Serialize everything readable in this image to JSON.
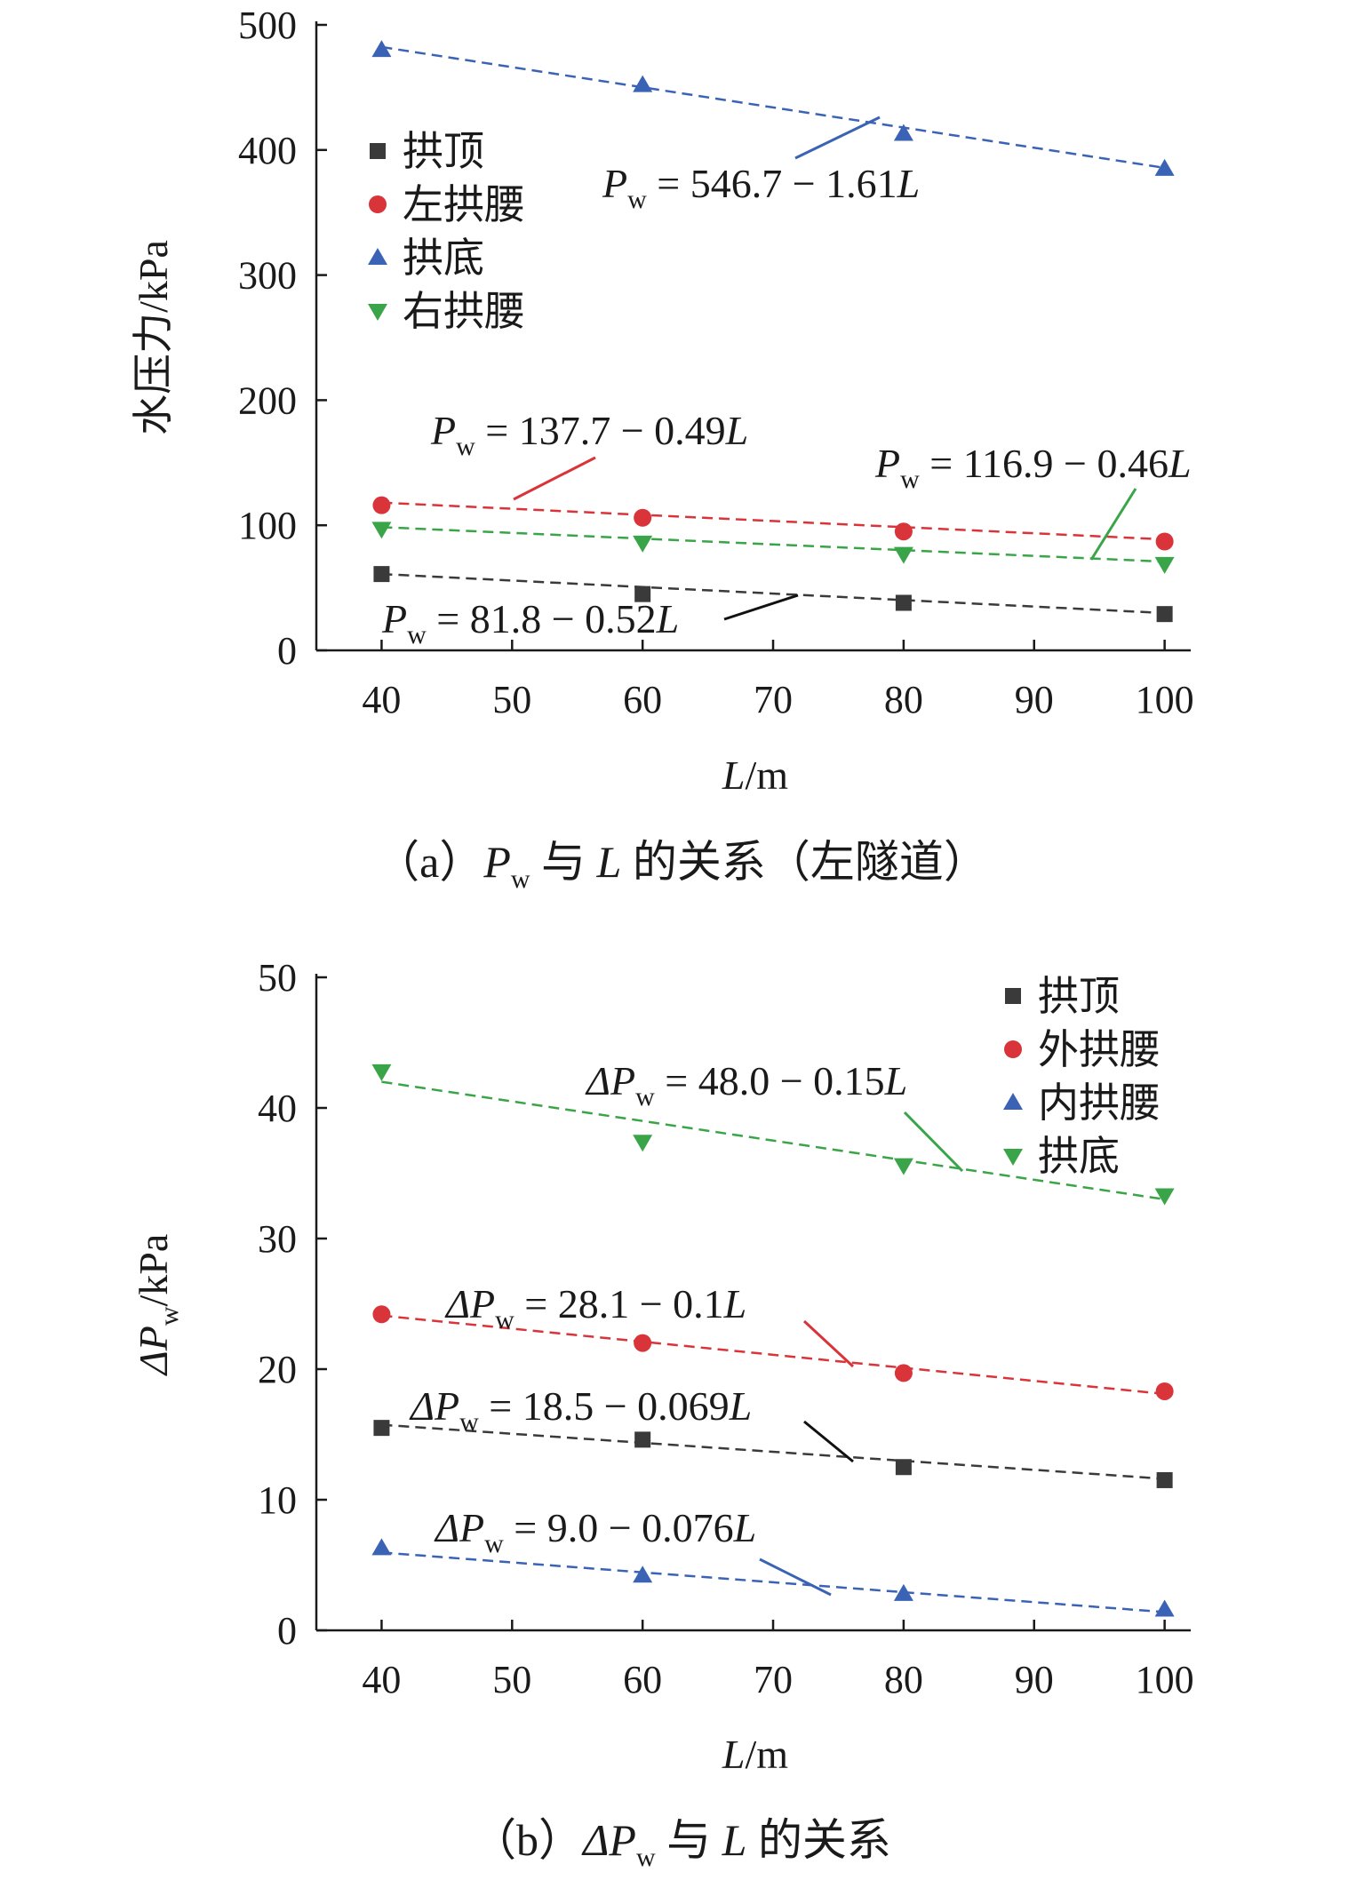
{
  "chart_data": [
    {
      "type": "scatter",
      "caption": "（a）Pw 与 L 的关系（左隧道）",
      "caption_parts": {
        "open": "（a）",
        "sym": "P",
        "sub": "w",
        "mid": " 与 ",
        "var": "L",
        "tail": " 的关系（左隧道）"
      },
      "xlabel": "L/m",
      "xlabel_parts": {
        "var": "L",
        "unit": "/m"
      },
      "ylabel": "水压力/kPa",
      "xlim": [
        35,
        102
      ],
      "ylim": [
        0,
        500
      ],
      "xticks": [
        "40",
        "50",
        "60",
        "70",
        "80",
        "90",
        "100"
      ],
      "yticks": [
        "0",
        "100",
        "200",
        "300",
        "400",
        "500"
      ],
      "legend_position": "top-left",
      "x": [
        40,
        60,
        80,
        100
      ],
      "series": [
        {
          "name": "拱顶",
          "marker": "square",
          "color": "#3a3a3a",
          "values": [
            61,
            45,
            38,
            29
          ],
          "fit": [
            81.8,
            -0.52
          ]
        },
        {
          "name": "左拱腰",
          "marker": "circle",
          "color": "#d9343a",
          "values": [
            116,
            106,
            95,
            87
          ],
          "fit": [
            137.7,
            -0.49
          ]
        },
        {
          "name": "拱底",
          "marker": "triangle-up",
          "color": "#3b63b5",
          "values": [
            480,
            452,
            413,
            385
          ],
          "fit": [
            546.7,
            -1.61
          ]
        },
        {
          "name": "右拱腰",
          "marker": "triangle-down",
          "color": "#3aa548",
          "values": [
            97,
            86,
            77,
            69
          ],
          "fit": [
            116.9,
            -0.46
          ]
        }
      ],
      "annotations": [
        {
          "text": "Pw = 546.7 − 1.61L",
          "parts": {
            "pre": "",
            "sym": "P",
            "sub": "w",
            "body": " = 546.7 − 1.61",
            "var": "L"
          },
          "series": "拱底"
        },
        {
          "text": "Pw = 137.7 − 0.49L",
          "parts": {
            "pre": "",
            "sym": "P",
            "sub": "w",
            "body": " = 137.7 − 0.49",
            "var": "L"
          },
          "series": "左拱腰"
        },
        {
          "text": "Pw = 116.9 − 0.46L",
          "parts": {
            "pre": "",
            "sym": "P",
            "sub": "w",
            "body": " = 116.9 − 0.46",
            "var": "L"
          },
          "series": "右拱腰"
        },
        {
          "text": "Pw = 81.8 − 0.52L",
          "parts": {
            "pre": "",
            "sym": "P",
            "sub": "w",
            "body": " = 81.8 − 0.52",
            "var": "L"
          },
          "series": "拱顶"
        }
      ]
    },
    {
      "type": "scatter",
      "caption": "（b）ΔPw 与 L 的关系",
      "caption_parts": {
        "open": "（b）",
        "sym": "ΔP",
        "sub": "w",
        "mid": " 与 ",
        "var": "L",
        "tail": " 的关系"
      },
      "xlabel": "L/m",
      "xlabel_parts": {
        "var": "L",
        "unit": "/m"
      },
      "ylabel": "ΔPw/kPa",
      "ylabel_parts": {
        "sym": "ΔP",
        "sub": "w",
        "unit": "/kPa"
      },
      "xlim": [
        35,
        102
      ],
      "ylim": [
        0,
        50
      ],
      "xticks": [
        "40",
        "50",
        "60",
        "70",
        "80",
        "90",
        "100"
      ],
      "yticks": [
        "0",
        "10",
        "20",
        "30",
        "40",
        "50"
      ],
      "legend_position": "top-right",
      "x": [
        40,
        60,
        80,
        100
      ],
      "series": [
        {
          "name": "拱顶",
          "marker": "square",
          "color": "#3a3a3a",
          "values": [
            15.5,
            14.6,
            12.5,
            11.5
          ],
          "fit": [
            18.5,
            -0.069
          ]
        },
        {
          "name": "外拱腰",
          "marker": "circle",
          "color": "#d9343a",
          "values": [
            24.2,
            22.0,
            19.7,
            18.3
          ],
          "fit": [
            28.1,
            -0.1
          ]
        },
        {
          "name": "内拱腰",
          "marker": "triangle-up",
          "color": "#3b63b5",
          "values": [
            6.3,
            4.2,
            2.8,
            1.6
          ],
          "fit": [
            9.0,
            -0.076
          ]
        },
        {
          "name": "拱底",
          "marker": "triangle-down",
          "color": "#3aa548",
          "values": [
            42.8,
            37.4,
            35.6,
            33.3
          ],
          "fit": [
            48.0,
            -0.15
          ]
        }
      ],
      "annotations": [
        {
          "text": "ΔPw = 48.0 − 0.15L",
          "parts": {
            "sym": "ΔP",
            "sub": "w",
            "body": " = 48.0 − 0.15",
            "var": "L"
          },
          "series": "拱底"
        },
        {
          "text": "ΔPw = 28.1 − 0.1L",
          "parts": {
            "sym": "ΔP",
            "sub": "w",
            "body": " = 28.1 − 0.1",
            "var": "L"
          },
          "series": "外拱腰"
        },
        {
          "text": "ΔPw = 18.5 − 0.069L",
          "parts": {
            "sym": "ΔP",
            "sub": "w",
            "body": " = 18.5 − 0.069",
            "var": "L"
          },
          "series": "拱顶"
        },
        {
          "text": "ΔPw = 9.0 − 0.076L",
          "parts": {
            "sym": "ΔP",
            "sub": "w",
            "body": " = 9.0 − 0.076",
            "var": "L"
          },
          "series": "内拱腰"
        }
      ]
    }
  ]
}
